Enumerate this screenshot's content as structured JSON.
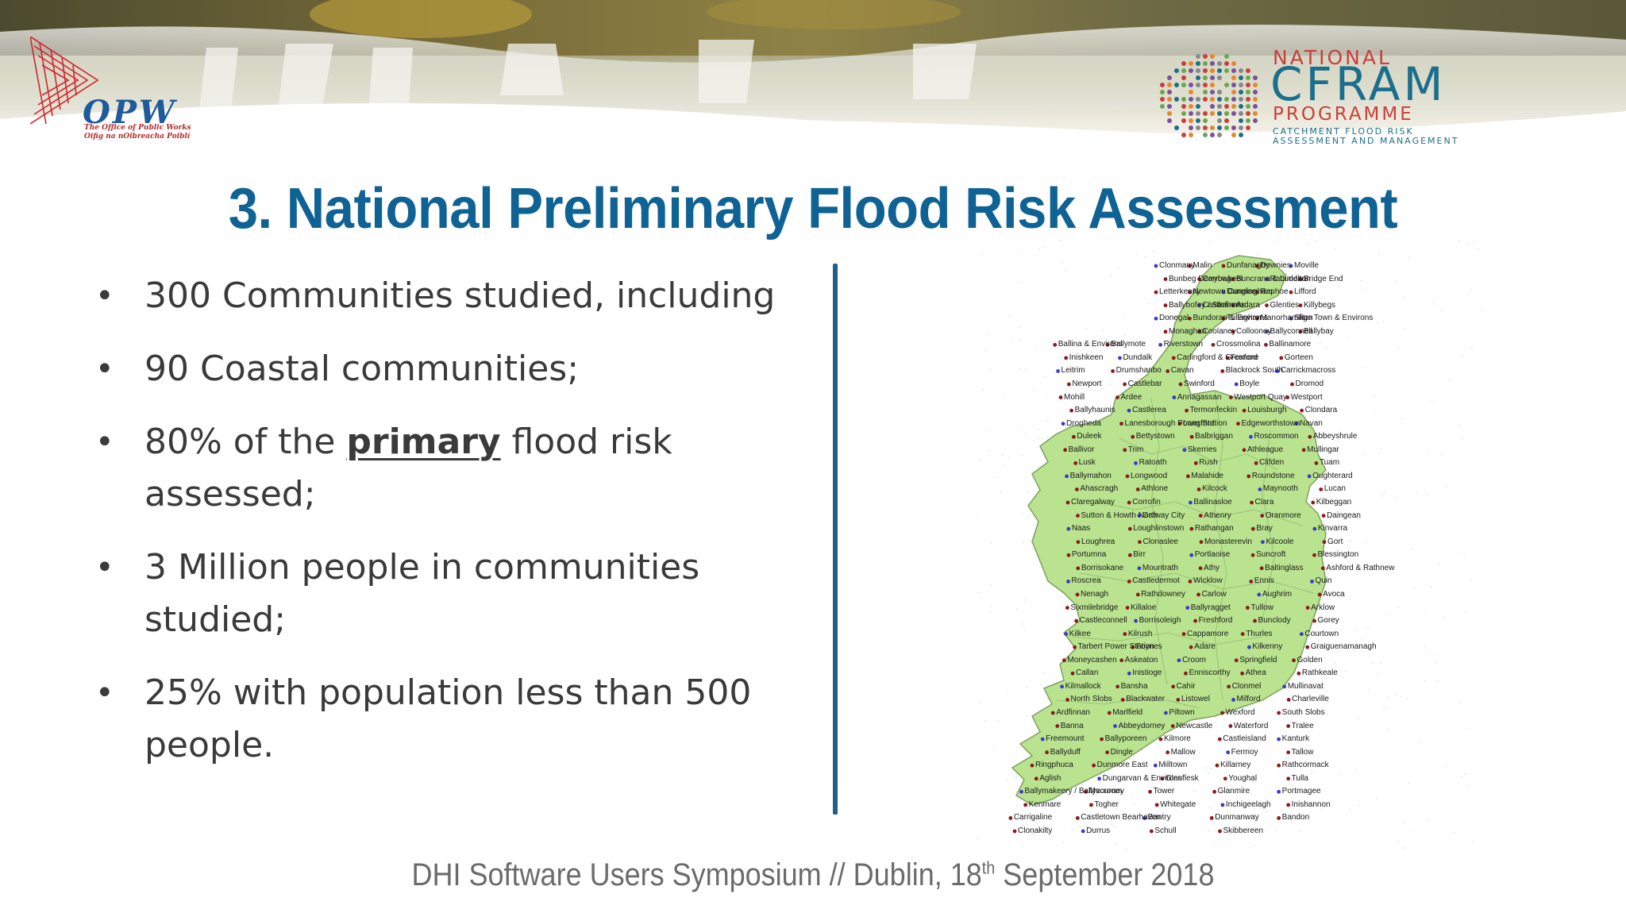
{
  "header": {
    "opw": {
      "logo_text": "OPW",
      "subtitle_line1": "The Office of Public Works",
      "subtitle_line2": "Oifig na nOibreacha Poiblí"
    },
    "cfram": {
      "line1": "NATIONAL",
      "line2": "CFRAM",
      "line3": "PROGRAMME",
      "line4": "CATCHMENT FLOOD RISK",
      "line5": "ASSESSMENT AND MANAGEMENT"
    }
  },
  "slide": {
    "title": "3. National Preliminary Flood Risk Assessment",
    "bullets": [
      {
        "text": "300 Communities studied, including"
      },
      {
        "text": "90 Coastal communities;"
      },
      {
        "pre": "80% of the ",
        "emphasis": "primary",
        "post": " flood risk assessed;"
      },
      {
        "text": "3 Million people in communities studied;"
      },
      {
        "text": "25% with population less than 500 people."
      }
    ],
    "bullet_symbol": "•"
  },
  "map": {
    "colors": {
      "land": "#b9e38f",
      "border": "#7fa060",
      "sea_dot": "#9bd1ea",
      "site_red": "#8a1b1b",
      "site_blue": "#3a3acb"
    },
    "labels": [
      "Clonmany",
      "Malin",
      "Dunfanaghy",
      "Downies",
      "Moville",
      "Bunbeg Derrybeg",
      "Carrowkeel",
      "Buncrana & Luddan",
      "Rathmelton",
      "Bridge End",
      "Letterkenny",
      "Newtown Cunningham",
      "Dungloe",
      "Raphoe",
      "Lifford",
      "Ballybofey / Stranorlar",
      "Castlefinn",
      "Ardara",
      "Glenties",
      "Killybegs",
      "Donegal",
      "Bundoran & Environs",
      "Tullaghan",
      "Manorhamilton",
      "Sligo Town & Environs",
      "Monaghan",
      "Coolaney",
      "Collooney",
      "Ballyconnell",
      "Ballybay",
      "Ballina & Environs",
      "Ballymote",
      "Riverstown",
      "Crossmolina",
      "Ballinamore",
      "Inishkeen",
      "Dundalk",
      "Carlingford & Greenore",
      "Foxford",
      "Gorteen",
      "Leitrim",
      "Drumshanbo",
      "Cavan",
      "Blackrock South",
      "Carrickmacross",
      "Newport",
      "Castlebar",
      "Swinford",
      "Boyle",
      "Dromod",
      "Mohill",
      "Ardee",
      "Annagassan",
      "Westport Quay",
      "Westport",
      "Ballyhaunis",
      "Castlerea",
      "Termonfeckin",
      "Louisburgh",
      "Clondara",
      "Drogheda",
      "Lanesborough Power Station",
      "Longford",
      "Edgeworthstown",
      "Navan",
      "Duleek",
      "Bettystown",
      "Balbriggan",
      "Roscommon",
      "Abbeyshrule",
      "Ballivor",
      "Trim",
      "Skerries",
      "Athleague",
      "Mullingar",
      "Lusk",
      "Ratoath",
      "Rush",
      "Clifden",
      "Tuam",
      "Ballymahon",
      "Longwood",
      "Malahide",
      "Roundstone",
      "Oughterard",
      "Ahascragh",
      "Athlone",
      "Kilcock",
      "Maynooth",
      "Lucan",
      "Claregalway",
      "Corrofin",
      "Ballinasloe",
      "Clara",
      "Kilbeggan",
      "Sutton & Howth North",
      "Galway City",
      "Athenry",
      "Oranmore",
      "Daingean",
      "Naas",
      "Loughlinstown",
      "Rathangan",
      "Bray",
      "Kinvarra",
      "Loughrea",
      "Clonaslee",
      "Monasterevin",
      "Kilcoole",
      "Gort",
      "Portumna",
      "Birr",
      "Portlaoise",
      "Suncroft",
      "Blessington",
      "Borrisokane",
      "Mountrath",
      "Athy",
      "Baltinglass",
      "Ashford & Rathnew",
      "Roscrea",
      "Castledermot",
      "Wicklow",
      "Ennis",
      "Quin",
      "Nenagh",
      "Rathdowney",
      "Carlow",
      "Aughrim",
      "Avoca",
      "Sixmilebridge",
      "Killaloe",
      "Ballyragget",
      "Tullow",
      "Arklow",
      "Castleconnell",
      "Borrisoleigh",
      "Freshford",
      "Bunclody",
      "Gorey",
      "Kilkee",
      "Kilrush",
      "Cappamore",
      "Thurles",
      "Courtown",
      "Tarbert Power Station",
      "Foynes",
      "Adare",
      "Kilkenny",
      "Graiguenamanagh",
      "Moneycashen",
      "Askeaton",
      "Croom",
      "Springfield",
      "Golden",
      "Callan",
      "Inistioge",
      "Enniscorthy",
      "Athea",
      "Rathkeale",
      "Kilmallock",
      "Bansha",
      "Cahir",
      "Clonmel",
      "Mullinavat",
      "North Slobs",
      "Blackwater",
      "Listowel",
      "Milford",
      "Charleville",
      "Ardfinnan",
      "Marlfield",
      "Piltown",
      "Wexford",
      "South Slobs",
      "Banna",
      "Abbeydorney",
      "Newcastle",
      "Waterford",
      "Tralee",
      "Freemount",
      "Ballyporeen",
      "Kilmore",
      "Castleisland",
      "Kanturk",
      "Ballyduff",
      "Dingle",
      "Mallow",
      "Fermoy",
      "Tallow",
      "Ringphuca",
      "Dunmore East",
      "Milltown",
      "Killarney",
      "Rathcormack",
      "Aglish",
      "Dungarvan & Environs",
      "Glenflesk",
      "Youghal",
      "Tulla",
      "Ballymakeery / Ballyvourney",
      "Macroom",
      "Tower",
      "Glanmire",
      "Portmagee",
      "Kenmare",
      "Togher",
      "Whitegate",
      "Inchigeelagh",
      "Inishannon",
      "Carrigaline",
      "Castletown Bearhaven",
      "Bantry",
      "Dunmanway",
      "Bandon",
      "Clonakilty",
      "Durrus",
      "Schull",
      "Skibbereen"
    ]
  },
  "footer": {
    "text_pre": "DHI Software Users Symposium // Dublin, 18",
    "superscript": "th",
    "text_post": " September 2018"
  }
}
